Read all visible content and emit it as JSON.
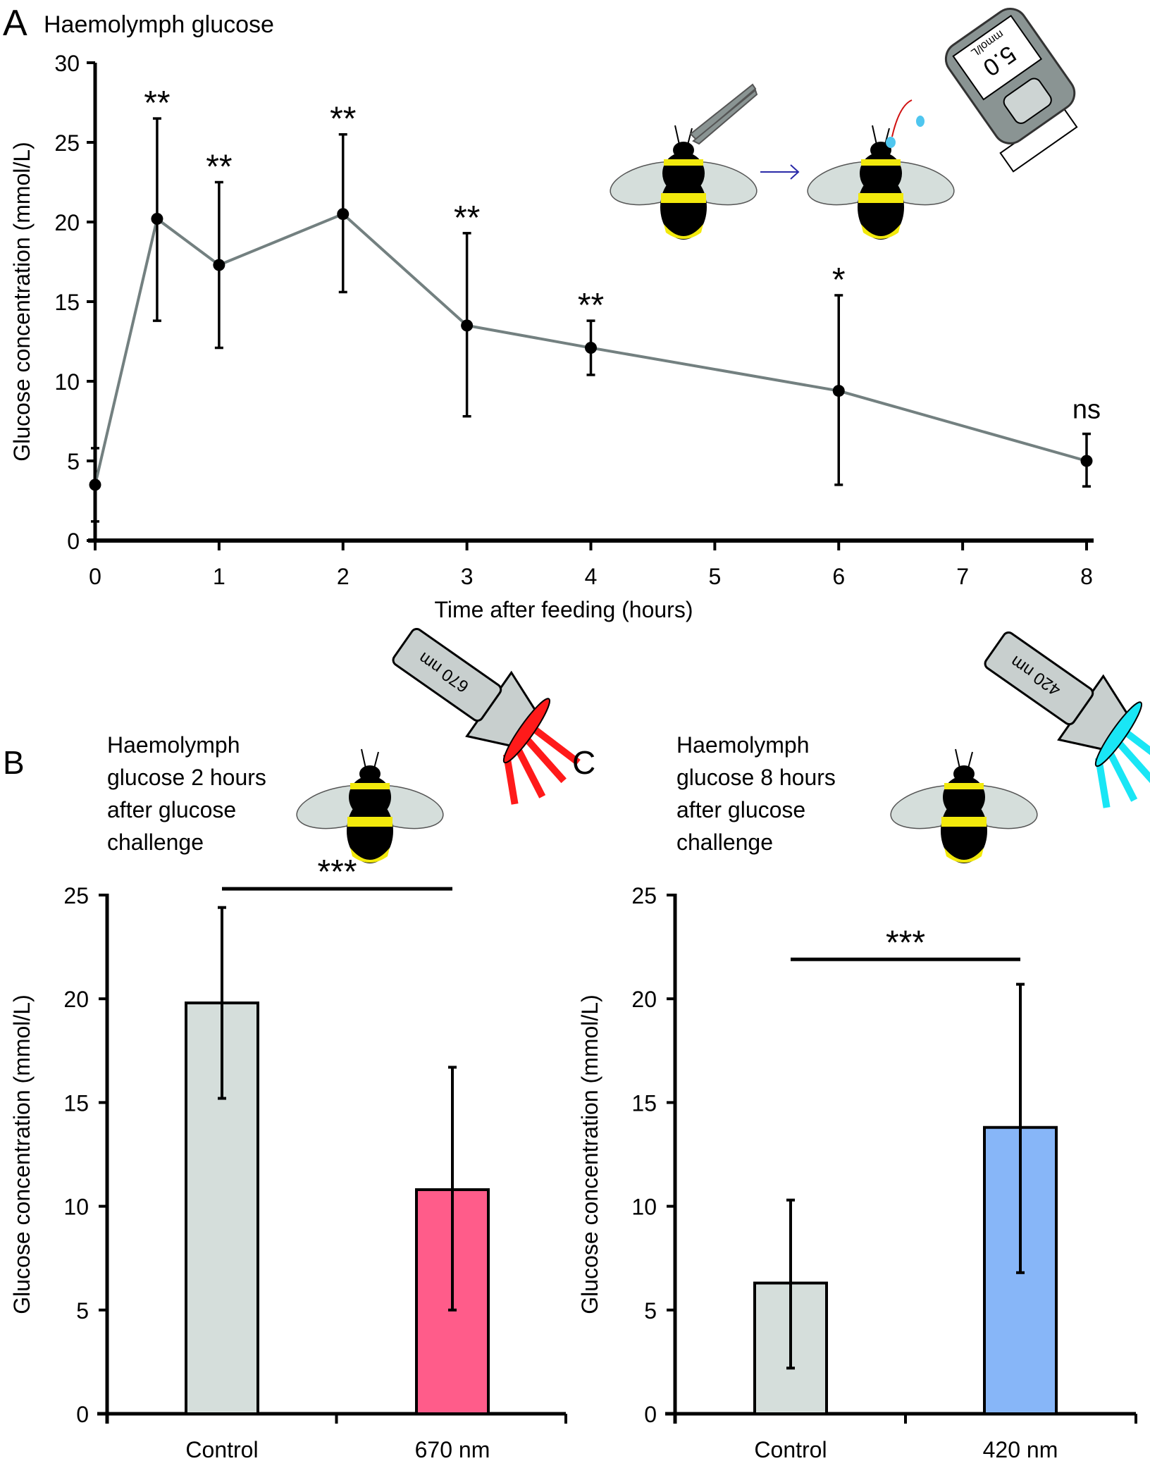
{
  "chart_data": [
    {
      "id": "A",
      "type": "line",
      "panel_label": "A",
      "title": "Haemolymph glucose",
      "xlabel": "Time after feeding (hours)",
      "ylabel": "Glucose concentration (mmol/L)",
      "xlim": [
        0,
        8
      ],
      "ylim": [
        0,
        30
      ],
      "xticks": [
        0,
        1,
        2,
        3,
        4,
        5,
        6,
        7,
        8
      ],
      "yticks": [
        0,
        5,
        10,
        15,
        20,
        25,
        30
      ],
      "grid": false,
      "series": [
        {
          "name": "Haemolymph glucose",
          "color": "#738080",
          "x": [
            0,
            0.5,
            1,
            2,
            3,
            4,
            6,
            8
          ],
          "y": [
            3.5,
            20.2,
            17.3,
            20.5,
            13.5,
            12.1,
            9.4,
            5.0
          ],
          "err_low": [
            1.2,
            13.8,
            12.1,
            15.6,
            7.8,
            10.4,
            3.5,
            3.4
          ],
          "err_high": [
            5.8,
            26.5,
            22.5,
            25.5,
            19.3,
            13.8,
            15.4,
            6.7
          ],
          "significance": [
            "",
            "**",
            "**",
            "**",
            "**",
            "**",
            "*",
            "ns"
          ]
        }
      ],
      "illustration": {
        "meter_display_value": "5.0",
        "meter_display_unit": "mmol/L"
      }
    },
    {
      "id": "B",
      "type": "bar",
      "panel_label": "B",
      "title": "Haemolymph glucose 2 hours after glucose challenge",
      "title_lines": [
        "Haemolymph",
        "glucose 2 hours",
        "after glucose",
        "challenge"
      ],
      "xlabel": "",
      "ylabel": "Glucose concentration (mmol/L)",
      "ylim": [
        0,
        25
      ],
      "yticks": [
        0,
        5,
        10,
        15,
        20,
        25
      ],
      "grid": false,
      "categories": [
        "Control",
        "670 nm"
      ],
      "values": [
        19.8,
        10.8
      ],
      "err_low": [
        15.2,
        5.0
      ],
      "err_high": [
        24.4,
        16.7
      ],
      "colors": [
        "#d5dedb",
        "#ff5c8a"
      ],
      "significance": {
        "label": "***",
        "y": 25.3
      },
      "illustration": {
        "lamp_label": "670 nm",
        "light_color": "#ff1a1a"
      }
    },
    {
      "id": "C",
      "type": "bar",
      "panel_label": "C",
      "title": "Haemolymph glucose 8 hours after glucose challenge",
      "title_lines": [
        "Haemolymph",
        "glucose 8 hours",
        "after glucose",
        "challenge"
      ],
      "xlabel": "",
      "ylabel": "Glucose concentration (mmol/L)",
      "ylim": [
        0,
        25
      ],
      "yticks": [
        0,
        5,
        10,
        15,
        20,
        25
      ],
      "grid": false,
      "categories": [
        "Control",
        "420 nm"
      ],
      "values": [
        6.3,
        13.8
      ],
      "err_low": [
        2.2,
        6.8
      ],
      "err_high": [
        10.3,
        20.7
      ],
      "colors": [
        "#d5dedb",
        "#87b6f8"
      ],
      "significance": {
        "label": "***",
        "y": 21.9
      },
      "illustration": {
        "lamp_label": "420 nm",
        "light_color": "#19e6f5"
      }
    }
  ]
}
